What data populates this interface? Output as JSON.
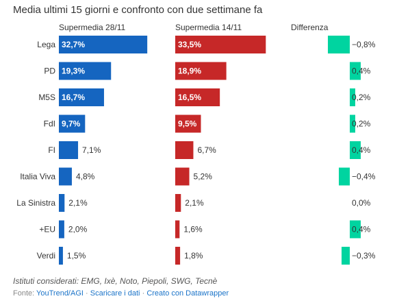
{
  "title": "Media ultimi 15 giorni e confronto con due settimane fa",
  "notes": "Istituti considerati: EMG, Ixè, Noto, Piepoli, SWG, Tecnè",
  "footer": {
    "prefix": "Fonte:",
    "source_link": "YouTrend/AGI",
    "sep1": "·",
    "download_link": "Scaricare i dati",
    "sep2": "·",
    "credit_link": "Creato con Datawrapper"
  },
  "colors": {
    "current": "#1565c0",
    "previous": "#c62828",
    "diff": "#00d4a0"
  },
  "chart_data": {
    "type": "bar",
    "categories": [
      "Lega",
      "PD",
      "M5S",
      "FdI",
      "FI",
      "Italia Viva",
      "La Sinistra",
      "+EU",
      "Verdi"
    ],
    "series": [
      {
        "name": "Supermedia 28/11",
        "values": [
          32.7,
          19.3,
          16.7,
          9.7,
          7.1,
          4.8,
          2.1,
          2.0,
          1.5
        ],
        "labels": [
          "32,7%",
          "19,3%",
          "16,7%",
          "9,7%",
          "7,1%",
          "4,8%",
          "2,1%",
          "2,0%",
          "1,5%"
        ]
      },
      {
        "name": "Supermedia 14/11",
        "values": [
          33.5,
          18.9,
          16.5,
          9.5,
          6.7,
          5.2,
          2.1,
          1.6,
          1.8
        ],
        "labels": [
          "33,5%",
          "18,9%",
          "16,5%",
          "9,5%",
          "6,7%",
          "5,2%",
          "2,1%",
          "1,6%",
          "1,8%"
        ]
      },
      {
        "name": "Differenza",
        "values": [
          -0.8,
          0.4,
          0.2,
          0.2,
          0.4,
          -0.4,
          0.0,
          0.4,
          -0.3
        ],
        "labels": [
          "−0,8%",
          "0,4%",
          "0,2%",
          "0,2%",
          "0,4%",
          "−0,4%",
          "0,0%",
          "0,4%",
          "−0,3%"
        ]
      }
    ]
  }
}
